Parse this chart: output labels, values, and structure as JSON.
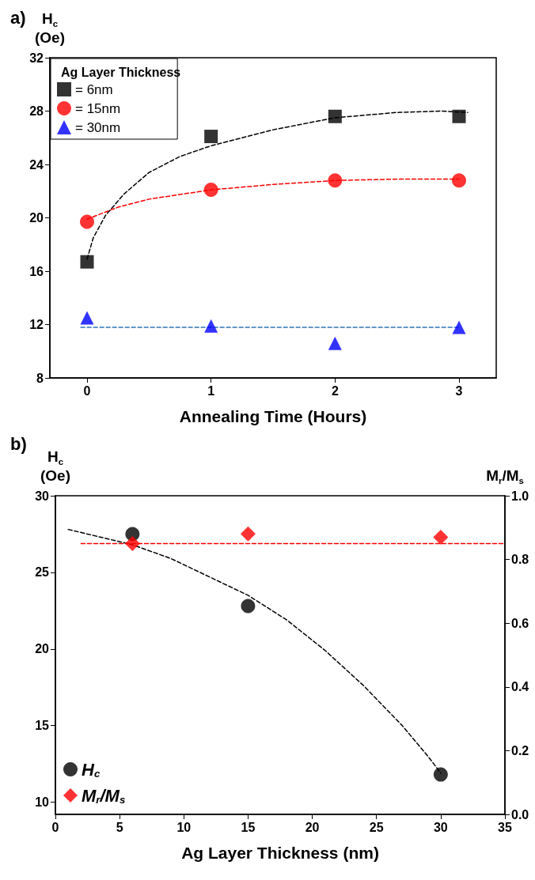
{
  "chart_data": [
    {
      "type": "scatter",
      "title": "a)",
      "xlabel": "Annealing Time (Hours)",
      "ylabel": "H$_{c}$ (Oe)",
      "legend_title": "Ag Layer Thickness",
      "legend": "top left",
      "grid": false,
      "xlim": [
        -0.3,
        3.3
      ],
      "xticks": [
        0,
        1,
        2,
        3
      ],
      "ylim": [
        8,
        32
      ],
      "yticks": [
        8,
        12,
        16,
        20,
        24,
        28,
        32
      ],
      "x": [
        0,
        1,
        2,
        3
      ],
      "series": [
        {
          "name": "= 6nm",
          "color": "#000000",
          "marker": "square",
          "values": [
            16.7,
            26.1,
            27.6,
            27.6
          ]
        },
        {
          "name": "= 15nm",
          "color": "#ff0000",
          "marker": "circle",
          "values": [
            19.7,
            22.1,
            22.8,
            22.8
          ]
        },
        {
          "name": "= 30nm",
          "color": "#0000ff",
          "marker": "triangle",
          "values": [
            12.5,
            11.9,
            10.6,
            11.8
          ]
        },
        {
          "type": "line",
          "color": "#000000",
          "marker": "none",
          "line_style": "dashed",
          "x": [
            0,
            0.05,
            0.15,
            0.3,
            0.5,
            0.75,
            1,
            1.5,
            2,
            2.5,
            2.85,
            3.07
          ],
          "values": [
            16.9,
            18.5,
            20.2,
            21.8,
            23.4,
            24.6,
            25.4,
            26.6,
            27.5,
            27.9,
            28.0,
            27.9
          ]
        },
        {
          "type": "line",
          "color": "#ff0000",
          "marker": "none",
          "line_style": "dashed",
          "x": [
            0,
            0.25,
            0.5,
            1,
            1.5,
            2,
            2.5,
            3
          ],
          "values": [
            19.9,
            20.8,
            21.4,
            22.1,
            22.5,
            22.8,
            22.9,
            22.9
          ]
        },
        {
          "type": "line",
          "color": "#2e75b6",
          "marker": "none",
          "line_style": "dashed",
          "x": [
            -0.05,
            3
          ],
          "values": [
            11.8,
            11.8
          ]
        }
      ]
    },
    {
      "type": "scatter",
      "title": "b)",
      "xlabel": "Ag Layer Thickness (nm)",
      "ylabel": "H$_{c}$ (Oe)",
      "y2label": "M$_{r}$/M$_{s}$",
      "legend": "bottom left",
      "grid": false,
      "xlim": [
        0,
        35
      ],
      "xticks": [
        0,
        5,
        10,
        15,
        20,
        25,
        30,
        35
      ],
      "ylim": [
        9.2,
        30
      ],
      "yticks": [
        10,
        15,
        20,
        25,
        30
      ],
      "y2lim": [
        0,
        1
      ],
      "y2ticks": [
        {
          "value": 0,
          "label": "0.0"
        },
        0.2,
        0.4,
        0.6,
        0.8,
        {
          "value": 1,
          "label": "1.0"
        }
      ],
      "x": [
        6,
        15,
        30
      ],
      "series": [
        {
          "name": "H$_{c}$",
          "color": "#000000",
          "marker": "circle",
          "values": [
            27.5,
            22.8,
            11.8
          ]
        },
        {
          "name": "M$_{r}$/M$_{s}$",
          "color": "#ff0000",
          "marker": "diamond",
          "axis": "y2",
          "values": [
            0.85,
            0.88,
            0.87
          ]
        },
        {
          "type": "line",
          "color": "#000000",
          "marker": "none",
          "line_style": "dashed",
          "x": [
            1,
            3,
            6,
            9,
            12,
            15,
            18,
            21,
            24,
            27,
            29,
            30
          ],
          "values": [
            27.8,
            27.4,
            26.8,
            25.9,
            24.7,
            23.5,
            21.9,
            19.9,
            17.6,
            15.0,
            13.0,
            11.9
          ]
        },
        {
          "type": "line",
          "color": "#ff0000",
          "marker": "none",
          "line_style": "dashed",
          "axis": "y2",
          "x": [
            2,
            35
          ],
          "values": [
            0.85,
            0.85
          ]
        }
      ]
    }
  ]
}
